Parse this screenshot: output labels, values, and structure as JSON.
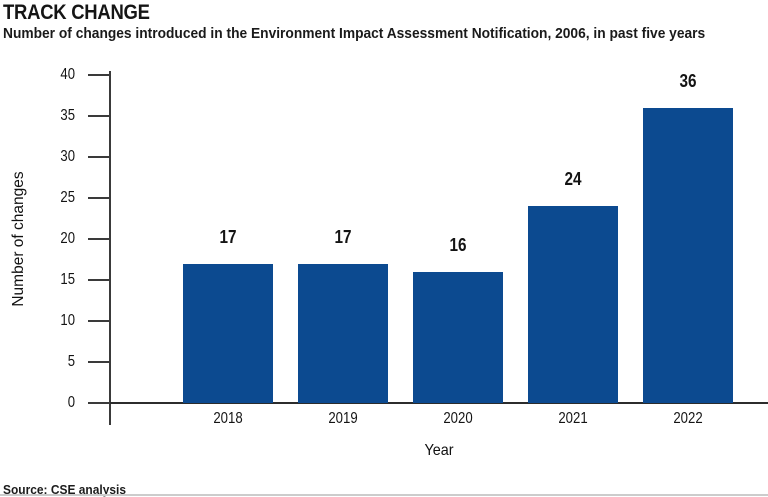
{
  "header": {
    "title": "TRACK CHANGE",
    "subtitle": "Number of changes introduced in the Environment Impact Assessment Notification, 2006, in past five years"
  },
  "chart_data": {
    "type": "bar",
    "categories": [
      "2018",
      "2019",
      "2020",
      "2021",
      "2022"
    ],
    "values": [
      17,
      17,
      16,
      24,
      36
    ],
    "value_labels": [
      "17",
      "17",
      "16",
      "24",
      "36"
    ],
    "title": "TRACK CHANGE",
    "xlabel": "Year",
    "ylabel": "Number of changes",
    "ylim": [
      0,
      40
    ],
    "ytick_step": 5,
    "yticks": [
      0,
      5,
      10,
      15,
      20,
      25,
      30,
      35,
      40
    ],
    "grid": false,
    "legend": "none",
    "bar_color": "#0C4A90"
  },
  "footer": {
    "source": "Source: CSE analysis"
  },
  "colors": {
    "bar": "#0C4A90",
    "text": "#141414",
    "axis": "#3A3A3A",
    "divider": "#CCCCCC"
  }
}
